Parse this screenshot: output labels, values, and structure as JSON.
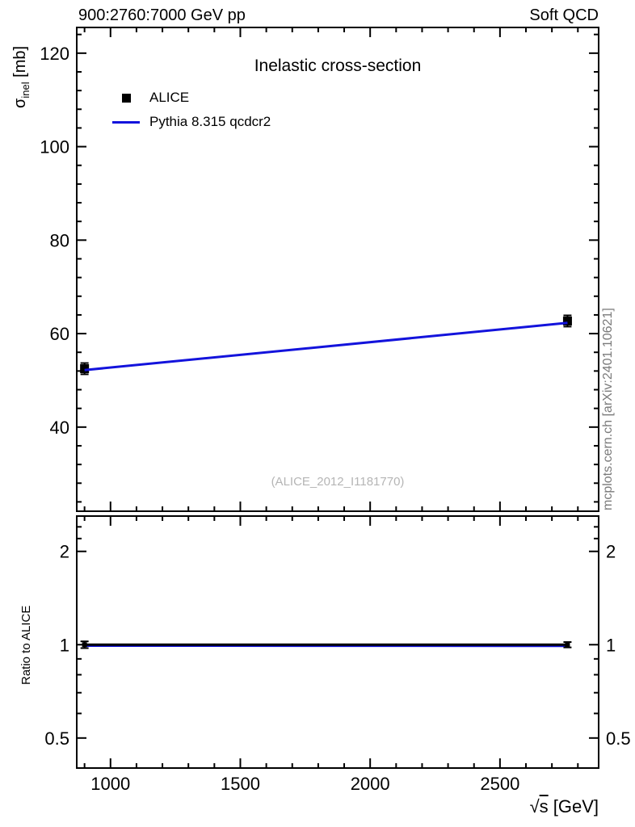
{
  "page": {
    "header_left": "900:2760:7000 GeV pp",
    "header_right": "Soft QCD",
    "watermark": "(ALICE_2012_I1181770)",
    "side_note": "mcplots.cern.ch [arXiv:2401.10621]",
    "xlabel_parts": {
      "sqrt": "√",
      "s": "s",
      "rest": " [GeV]"
    },
    "ylabel_main_parts": {
      "symbol": "σ",
      "sub": "inel",
      "rest": " [mb]"
    },
    "ylabel_ratio": "Ratio to ALICE"
  },
  "colors": {
    "marker_black": "#000000",
    "line_blue": "#1313dc",
    "frame": "#000000",
    "watermark_gray": "#b5b5b5",
    "side_note_gray": "#7a7a7a"
  },
  "chart_data": [
    {
      "type": "line+scatter",
      "title": "Inelastic cross-section",
      "xlabel": "√s [GeV]",
      "ylabel": "σ_inel [mb]",
      "xlim": [
        870,
        2880
      ],
      "ylim": [
        22,
        125.5
      ],
      "yscale": "linear",
      "grid": false,
      "legend_position": "upper-left-inside",
      "xticks": [
        1000,
        1500,
        2000,
        2500
      ],
      "xticks_minor": [
        900,
        1100,
        1200,
        1300,
        1400,
        1600,
        1700,
        1800,
        1900,
        2100,
        2200,
        2300,
        2400,
        2600,
        2700,
        2800
      ],
      "yticks": [
        40,
        60,
        80,
        100,
        120
      ],
      "yticks_minor": [
        24,
        28,
        32,
        36,
        44,
        48,
        52,
        56,
        64,
        68,
        72,
        76,
        84,
        88,
        92,
        96,
        104,
        108,
        112,
        116,
        124
      ],
      "series": [
        {
          "name": "ALICE",
          "type": "scatter",
          "marker": "square",
          "msize": 11,
          "color": "#000000",
          "x": [
            900,
            2760
          ],
          "y": [
            52.5,
            62.7
          ],
          "yerr": [
            1.2,
            1.2
          ]
        },
        {
          "name": "Pythia 8.315 qcdcr2",
          "type": "line",
          "color": "#1313dc",
          "x": [
            900,
            2760
          ],
          "y": [
            52.2,
            62.3
          ]
        }
      ]
    },
    {
      "type": "line+scatter",
      "title": "",
      "ylabel": "Ratio to ALICE",
      "xlim": [
        870,
        2880
      ],
      "ylim": [
        0.4,
        2.6
      ],
      "yscale": "log",
      "grid": false,
      "xticks": [
        1000,
        1500,
        2000,
        2500
      ],
      "xticks_minor": [
        900,
        1100,
        1200,
        1300,
        1400,
        1600,
        1700,
        1800,
        1900,
        2100,
        2200,
        2300,
        2400,
        2600,
        2700,
        2800
      ],
      "yticks": [
        0.5,
        1,
        2
      ],
      "yticks_minor": [
        0.4,
        0.6,
        0.7,
        0.8,
        0.9,
        2.2,
        2.4
      ],
      "series": [
        {
          "name": "Pythia 8.315 qcdcr2 / ALICE",
          "type": "line",
          "color": "#1313dc",
          "x": [
            900,
            2760
          ],
          "y": [
            0.993,
            0.991
          ]
        },
        {
          "name": "ALICE reference",
          "type": "line",
          "color": "#000000",
          "x": [
            900,
            2760
          ],
          "y": [
            1.0,
            1.0
          ]
        },
        {
          "name": "ALICE ratio points",
          "type": "scatter",
          "marker": "square",
          "msize": 6,
          "color": "#000000",
          "x": [
            900,
            2760
          ],
          "y": [
            1.0,
            1.0
          ],
          "yerr": [
            0.025,
            0.02
          ]
        }
      ]
    }
  ]
}
